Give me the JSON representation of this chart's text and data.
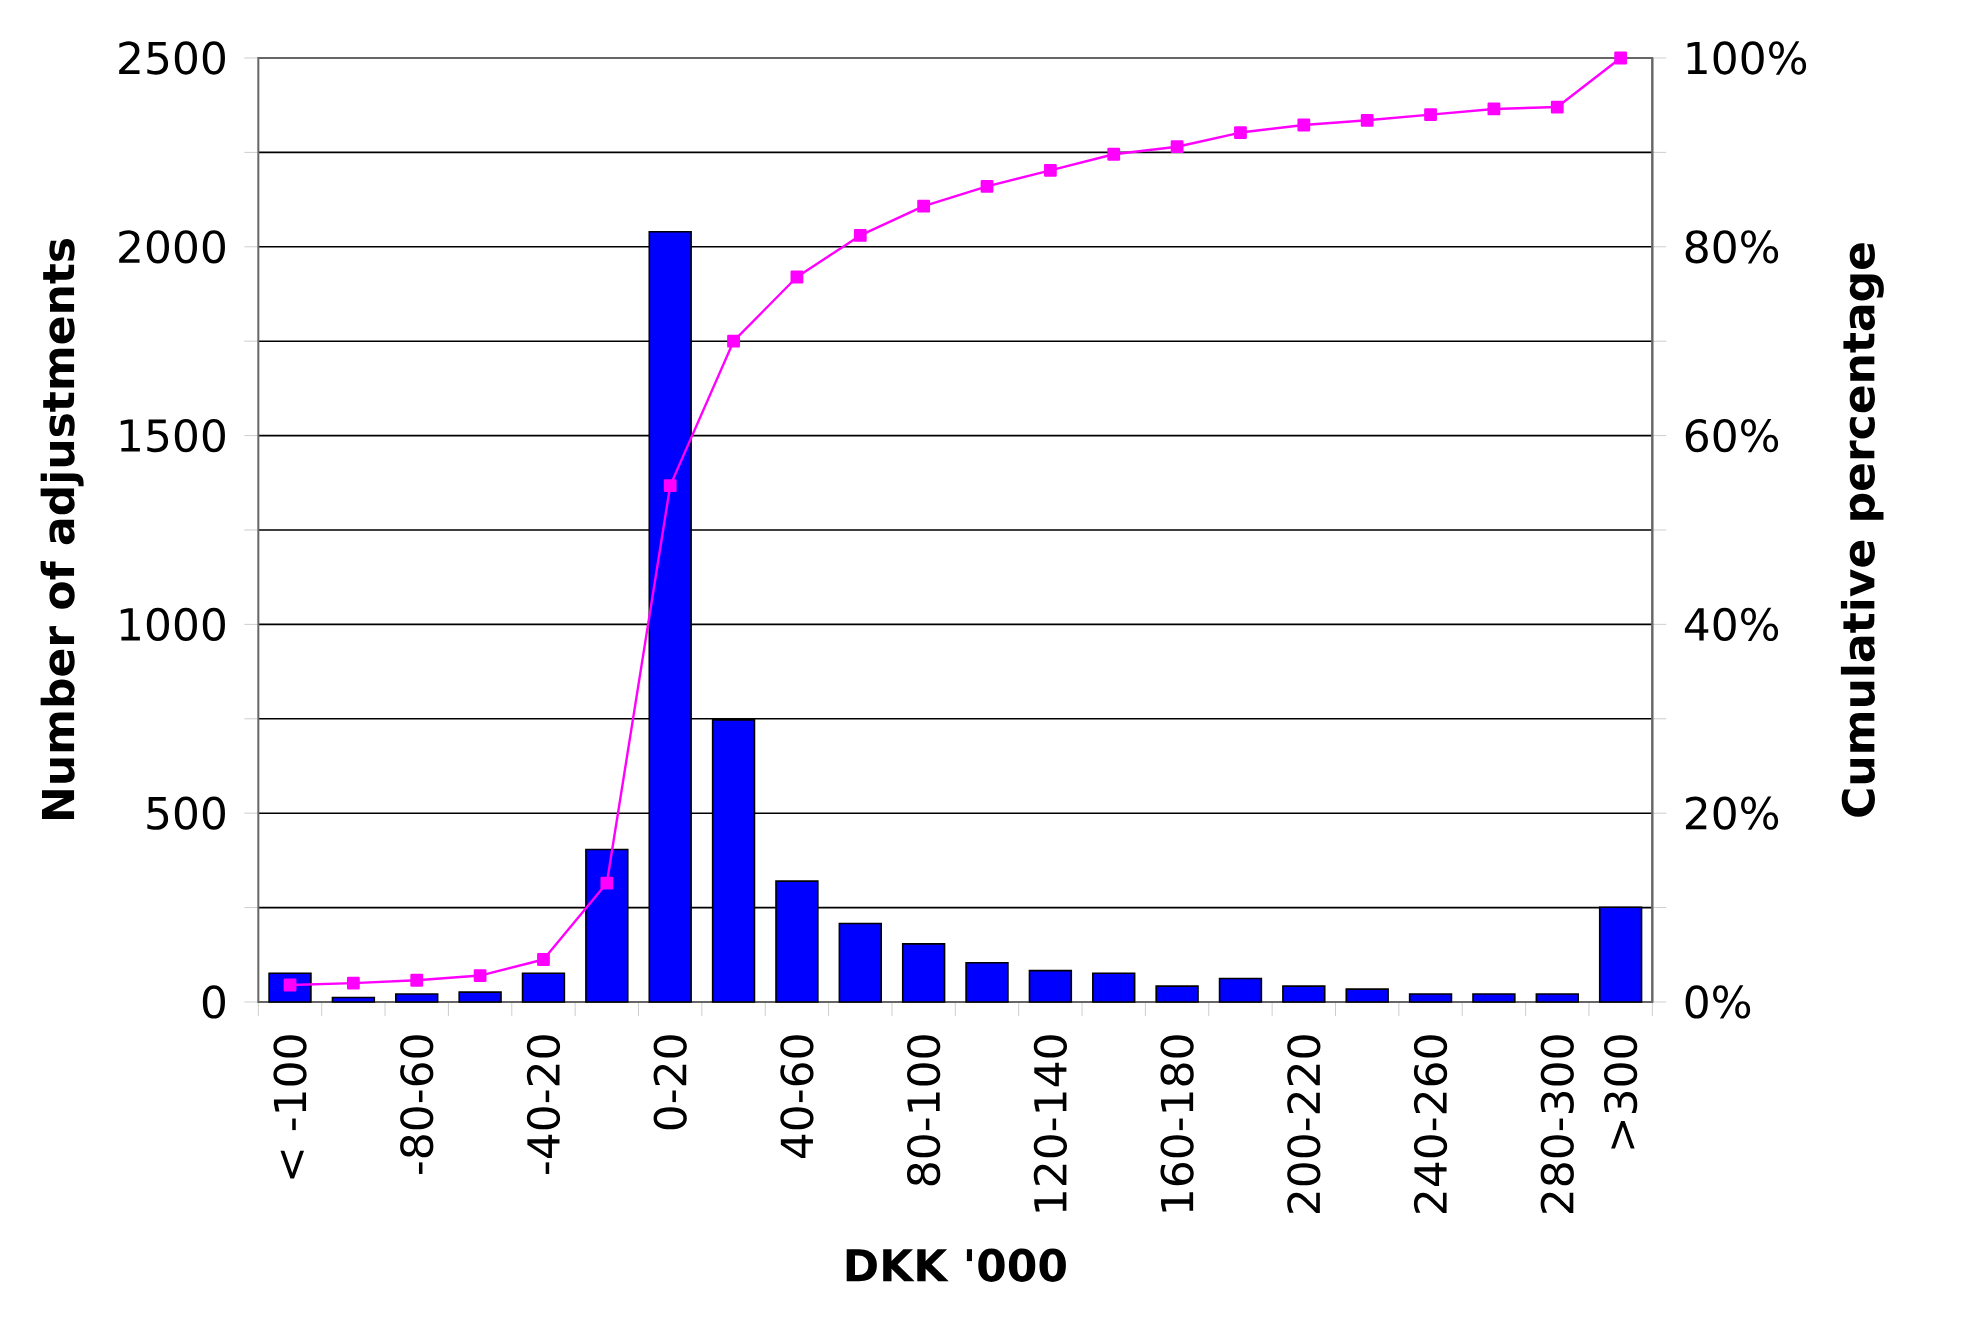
{
  "chart_data": {
    "type": "bar",
    "xlabel": "DKK '000",
    "ylabel": "Number of adjustments",
    "y2label": "Cumulative percentage",
    "categories": [
      "< -100",
      null,
      "-80-60",
      null,
      "-40-20",
      null,
      "0-20",
      null,
      "40-60",
      null,
      "80-100",
      null,
      "120-140",
      null,
      "160-180",
      null,
      "200-220",
      null,
      "240-260",
      null,
      "280-300",
      ">300"
    ],
    "series": [
      {
        "color": "#0000ff",
        "values": [
          76,
          12,
          21,
          26,
          76,
          404,
          2040,
          747,
          320,
          208,
          154,
          104,
          83,
          76,
          42,
          62,
          42,
          34,
          21,
          21,
          21,
          251
        ]
      },
      {
        "type": "line",
        "axis": "y2",
        "color": "#ff00ff",
        "marker": "square",
        "line_style": "solid",
        "values": [
          1.8,
          2.0,
          2.3,
          2.8,
          4.5,
          12.6,
          54.7,
          70.0,
          76.8,
          81.2,
          84.3,
          86.4,
          88.1,
          89.8,
          90.6,
          92.1,
          92.9,
          93.4,
          94.0,
          94.6,
          94.8,
          100
        ]
      }
    ],
    "ylim": [
      0,
      2500
    ],
    "yticks": [
      0,
      {
        "value": 250,
        "label": null
      },
      500,
      {
        "value": 750,
        "label": null
      },
      1000,
      {
        "value": 1250,
        "label": null
      },
      1500,
      {
        "value": 1750,
        "label": null
      },
      2000,
      {
        "value": 2250,
        "label": null
      },
      2500
    ],
    "y2lim": [
      0,
      100
    ],
    "y2ticks": [
      {
        "value": 0,
        "label": "0%"
      },
      {
        "value": 10,
        "label": null
      },
      {
        "value": 20,
        "label": "20%"
      },
      {
        "value": 30,
        "label": null
      },
      {
        "value": 40,
        "label": "40%"
      },
      {
        "value": 50,
        "label": null
      },
      {
        "value": 60,
        "label": "60%"
      },
      {
        "value": 70,
        "label": null
      },
      {
        "value": 80,
        "label": "80%"
      },
      {
        "value": 90,
        "label": null
      },
      {
        "value": 100,
        "label": "100%"
      }
    ],
    "grid": "y"
  }
}
